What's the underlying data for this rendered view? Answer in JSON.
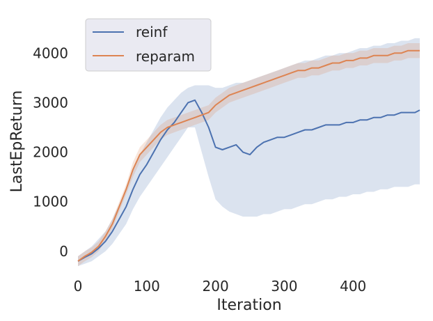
{
  "chart_data": {
    "type": "line",
    "title": "",
    "xlabel": "Iteration",
    "ylabel": "LastEpReturn",
    "xlim": [
      0,
      500
    ],
    "ylim": [
      -550,
      4650
    ],
    "xticks": [
      0,
      100,
      200,
      300,
      400
    ],
    "yticks": [
      0,
      1000,
      2000,
      3000,
      4000
    ],
    "grid": false,
    "legend_position": "top-left",
    "shaded_band": true,
    "series": [
      {
        "name": "reinf",
        "color": "#4c72b0",
        "x": [
          0,
          10,
          20,
          30,
          40,
          50,
          60,
          70,
          80,
          90,
          100,
          110,
          120,
          130,
          140,
          150,
          160,
          170,
          180,
          190,
          200,
          210,
          220,
          230,
          240,
          250,
          260,
          270,
          280,
          290,
          300,
          310,
          320,
          330,
          340,
          350,
          360,
          370,
          380,
          390,
          400,
          410,
          420,
          430,
          440,
          450,
          460,
          470,
          480,
          490,
          497
        ],
        "values": [
          -200,
          -120,
          -50,
          60,
          200,
          400,
          650,
          900,
          1250,
          1550,
          1750,
          2000,
          2250,
          2450,
          2600,
          2800,
          3000,
          3050,
          2800,
          2500,
          2100,
          2050,
          2100,
          2150,
          2000,
          1950,
          2100,
          2200,
          2250,
          2300,
          2300,
          2350,
          2400,
          2450,
          2450,
          2500,
          2550,
          2550,
          2550,
          2600,
          2600,
          2650,
          2650,
          2700,
          2700,
          2750,
          2750,
          2800,
          2800,
          2800,
          2850
        ],
        "band_lower": [
          -300,
          -250,
          -200,
          -100,
          0,
          150,
          350,
          550,
          850,
          1100,
          1300,
          1500,
          1700,
          1900,
          2100,
          2300,
          2500,
          2500,
          2000,
          1500,
          1050,
          900,
          800,
          750,
          700,
          700,
          700,
          750,
          750,
          800,
          850,
          850,
          900,
          950,
          950,
          1000,
          1050,
          1050,
          1100,
          1100,
          1150,
          1150,
          1200,
          1200,
          1250,
          1250,
          1300,
          1300,
          1300,
          1350,
          1350
        ],
        "band_upper": [
          -100,
          0,
          100,
          250,
          400,
          650,
          950,
          1250,
          1650,
          1950,
          2200,
          2450,
          2700,
          2900,
          3050,
          3200,
          3300,
          3350,
          3350,
          3350,
          3300,
          3300,
          3350,
          3400,
          3400,
          3450,
          3500,
          3550,
          3600,
          3650,
          3700,
          3750,
          3800,
          3850,
          3850,
          3900,
          3950,
          3950,
          4000,
          4000,
          4050,
          4100,
          4100,
          4150,
          4150,
          4200,
          4200,
          4250,
          4250,
          4300,
          4300
        ]
      },
      {
        "name": "reparam",
        "color": "#dd8452",
        "x": [
          0,
          10,
          20,
          30,
          40,
          50,
          60,
          70,
          80,
          90,
          100,
          110,
          120,
          130,
          140,
          150,
          160,
          170,
          180,
          190,
          200,
          210,
          220,
          230,
          240,
          250,
          260,
          270,
          280,
          290,
          300,
          310,
          320,
          330,
          340,
          350,
          360,
          370,
          380,
          390,
          400,
          410,
          420,
          430,
          440,
          450,
          460,
          470,
          480,
          490,
          497
        ],
        "values": [
          -200,
          -100,
          -20,
          100,
          300,
          550,
          900,
          1250,
          1650,
          1950,
          2100,
          2250,
          2400,
          2500,
          2550,
          2600,
          2650,
          2700,
          2750,
          2800,
          2950,
          3050,
          3150,
          3200,
          3250,
          3300,
          3350,
          3400,
          3450,
          3500,
          3550,
          3600,
          3650,
          3650,
          3700,
          3700,
          3750,
          3800,
          3800,
          3850,
          3850,
          3900,
          3900,
          3950,
          3950,
          3950,
          4000,
          4000,
          4050,
          4050,
          4050
        ],
        "band_lower": [
          -300,
          -200,
          -120,
          0,
          200,
          450,
          800,
          1150,
          1500,
          1800,
          1950,
          2100,
          2250,
          2350,
          2400,
          2450,
          2500,
          2550,
          2600,
          2650,
          2800,
          2900,
          3000,
          3050,
          3100,
          3150,
          3200,
          3250,
          3300,
          3350,
          3400,
          3450,
          3500,
          3500,
          3550,
          3550,
          3600,
          3650,
          3650,
          3700,
          3700,
          3750,
          3750,
          3800,
          3800,
          3800,
          3850,
          3850,
          3900,
          3900,
          3900
        ],
        "band_upper": [
          -100,
          0,
          80,
          200,
          400,
          650,
          1000,
          1350,
          1800,
          2100,
          2250,
          2400,
          2550,
          2650,
          2700,
          2750,
          2800,
          2850,
          2900,
          2950,
          3100,
          3200,
          3300,
          3350,
          3400,
          3450,
          3500,
          3550,
          3600,
          3650,
          3700,
          3750,
          3800,
          3800,
          3850,
          3850,
          3900,
          3950,
          3950,
          4000,
          4000,
          4050,
          4050,
          4100,
          4100,
          4100,
          4150,
          4150,
          4200,
          4200,
          4200
        ]
      }
    ]
  }
}
